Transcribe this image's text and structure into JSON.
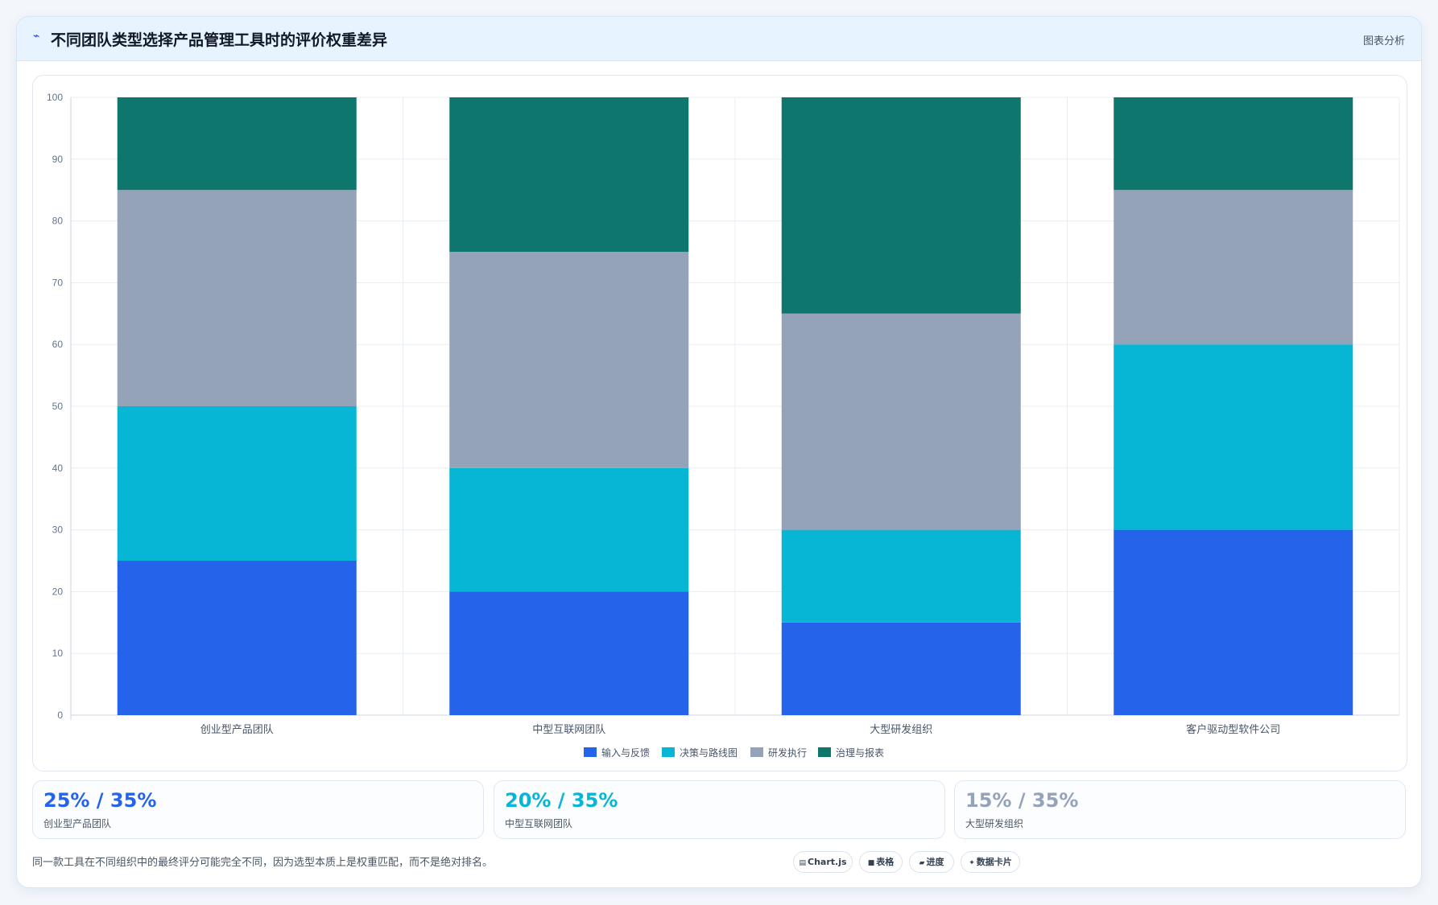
{
  "header": {
    "icon": "trend-icon",
    "title": "不同团队类型选择产品管理工具时的评价权重差异",
    "action_label": "图表分析"
  },
  "chart_data": {
    "type": "bar",
    "stacked": true,
    "categories": [
      "创业型产品团队",
      "中型互联网团队",
      "大型研发组织",
      "客户驱动型软件公司"
    ],
    "series": [
      {
        "name": "输入与反馈",
        "color": "#2563eb",
        "values": [
          25,
          20,
          15,
          30
        ]
      },
      {
        "name": "决策与路线图",
        "color": "#06b6d4",
        "values": [
          25,
          20,
          15,
          30
        ]
      },
      {
        "name": "研发执行",
        "color": "#94a3b8",
        "values": [
          35,
          35,
          35,
          25
        ]
      },
      {
        "name": "治理与报表",
        "color": "#0f766e",
        "values": [
          15,
          25,
          35,
          15
        ]
      }
    ],
    "ylim": [
      0,
      100
    ],
    "yticks": [
      0,
      10,
      20,
      30,
      40,
      50,
      60,
      70,
      80,
      90,
      100
    ],
    "grid": true,
    "legend": "bottom-center"
  },
  "stats": [
    {
      "value": "25% / 35%",
      "label": "创业型产品团队",
      "color": "#2563eb"
    },
    {
      "value": "20% / 35%",
      "label": "中型互联网团队",
      "color": "#06b6d4"
    },
    {
      "value": "15% / 35%",
      "label": "大型研发组织",
      "color": "#94a3b8"
    }
  ],
  "footer": {
    "note": "同一款工具在不同组织中的最终评分可能完全不同，因为选型本质上是权重匹配，而不是绝对排名。",
    "pills": [
      {
        "icon": "chart-icon",
        "glyph": "▤",
        "label": "Chart.js"
      },
      {
        "icon": "table-icon",
        "glyph": "■",
        "label": "表格"
      },
      {
        "icon": "progress-icon",
        "glyph": "▰",
        "label": "进度"
      },
      {
        "icon": "data-card-icon",
        "glyph": "✦",
        "label": "数据卡片"
      }
    ]
  }
}
